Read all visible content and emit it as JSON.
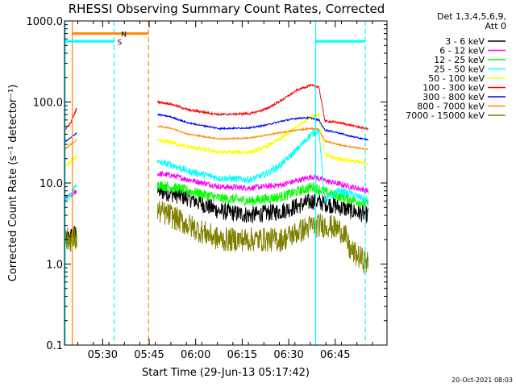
{
  "chart_data": {
    "type": "line",
    "title": "RHESSI Observing Summary Count Rates, Corrected",
    "xlabel": "Start Time (29-Jun-13 05:17:42)",
    "ylabel": "Corrected Count Rate (s⁻¹ detector⁻¹)",
    "yscale": "log",
    "ylim": [
      0.1,
      1000.0
    ],
    "xlim_minutes": [
      0,
      104
    ],
    "x_ticks": [
      {
        "label": "05:30",
        "t": 12.3
      },
      {
        "label": "05:45",
        "t": 27.3
      },
      {
        "label": "06:00",
        "t": 42.3
      },
      {
        "label": "06:15",
        "t": 57.3
      },
      {
        "label": "06:30",
        "t": 72.3
      },
      {
        "label": "06:45",
        "t": 87.3
      }
    ],
    "y_ticks": [
      {
        "label": "0.1",
        "v": 0.1
      },
      {
        "label": "1.0",
        "v": 1.0
      },
      {
        "label": "10.0",
        "v": 10.0
      },
      {
        "label": "100.0",
        "v": 100.0
      },
      {
        "label": "1000.0",
        "v": 1000.0
      }
    ],
    "legend_header": [
      "Det 1,3,4,5,6,9,",
      "Att 0"
    ],
    "legend_position": "right",
    "grid": false,
    "gaps_minutes": [
      [
        4,
        30
      ]
    ],
    "series": [
      {
        "name": "3 - 6 keV",
        "color": "#000000",
        "t": [
          0,
          2,
          4,
          30,
          34,
          40,
          50,
          60,
          70,
          80,
          85,
          98
        ],
        "v": [
          2,
          2.2,
          2.5,
          8,
          7.5,
          6.5,
          4.5,
          4,
          4.5,
          6,
          5.5,
          4
        ],
        "noise": 0.25
      },
      {
        "name": "6 - 12 keV",
        "color": "#ff00ff",
        "t": [
          0,
          2,
          4,
          30,
          34,
          40,
          50,
          60,
          70,
          80,
          85,
          98
        ],
        "v": [
          6.5,
          7,
          8,
          13,
          12.5,
          11,
          9,
          8.7,
          9.5,
          12,
          10.5,
          8
        ],
        "noise": 0.08
      },
      {
        "name": "12 - 25 keV",
        "color": "#00ff00",
        "t": [
          0,
          2,
          4,
          30,
          34,
          40,
          50,
          60,
          70,
          80,
          85,
          98
        ],
        "v": [
          1.7,
          1.8,
          2,
          9.5,
          9,
          8,
          6.5,
          6,
          6.8,
          9,
          7.5,
          5.5
        ],
        "noise": 0.15
      },
      {
        "name": "25 - 50 keV",
        "color": "#00ffff",
        "t": [
          0,
          2,
          4,
          30,
          34,
          40,
          50,
          60,
          65,
          70,
          75,
          79,
          82,
          84,
          88,
          92,
          98
        ],
        "v": [
          6,
          7,
          10,
          18,
          17,
          14,
          11.5,
          11,
          13,
          17,
          26,
          38,
          45,
          6,
          8,
          7.5,
          6
        ],
        "noise": 0.1
      },
      {
        "name": "50 - 100 keV",
        "color": "#ffff00",
        "t": [
          0,
          2,
          4,
          30,
          34,
          40,
          50,
          60,
          65,
          70,
          75,
          79,
          82,
          84,
          88,
          92,
          98
        ],
        "v": [
          16,
          18,
          22,
          33,
          32,
          28,
          24,
          24,
          28,
          36,
          50,
          65,
          72,
          22,
          20,
          19,
          17
        ],
        "noise": 0.06
      },
      {
        "name": "100 - 300 keV",
        "color": "#ff0000",
        "t": [
          0,
          2,
          4,
          30,
          34,
          40,
          50,
          60,
          65,
          70,
          75,
          79,
          82,
          84,
          88,
          92,
          98
        ],
        "v": [
          45,
          55,
          85,
          100,
          95,
          80,
          70,
          72,
          82,
          105,
          140,
          160,
          155,
          58,
          56,
          52,
          46
        ],
        "noise": 0.03
      },
      {
        "name": "300 - 800 keV",
        "color": "#0000ff",
        "t": [
          0,
          2,
          4,
          30,
          34,
          40,
          50,
          60,
          65,
          70,
          75,
          79,
          82,
          84,
          88,
          92,
          98
        ],
        "v": [
          32,
          36,
          42,
          70,
          66,
          55,
          47,
          48,
          52,
          58,
          63,
          64,
          60,
          45,
          42,
          38,
          34
        ],
        "noise": 0.02
      },
      {
        "name": "800 - 7000 keV",
        "color": "#ff8800",
        "t": [
          0,
          2,
          4,
          30,
          34,
          40,
          50,
          60,
          65,
          70,
          75,
          79,
          82,
          84,
          88,
          92,
          98
        ],
        "v": [
          26,
          30,
          34,
          50,
          48,
          40,
          35,
          36,
          39,
          42,
          45,
          47,
          46,
          33,
          30,
          28,
          26
        ],
        "noise": 0.02
      },
      {
        "name": "7000 - 15000 keV",
        "color": "#808000",
        "t": [
          0,
          2,
          4,
          30,
          34,
          40,
          50,
          60,
          70,
          80,
          85,
          90,
          92,
          98
        ],
        "v": [
          2,
          2,
          2,
          4.5,
          4,
          3,
          2,
          2,
          2,
          3,
          3,
          2.5,
          1.5,
          1
        ],
        "noise": 0.35
      }
    ],
    "flag_bars": [
      {
        "label": "S",
        "color": "#00ffff",
        "t0": 0.2,
        "t1": 16,
        "v": 560
      },
      {
        "label": "N",
        "color": "#ff8800",
        "t0": 2.5,
        "t1": 27.1,
        "v": 700
      },
      {
        "label": "",
        "color": "#00ffff",
        "t0": 81,
        "t1": 97,
        "v": 560
      }
    ],
    "vertical_markers": [
      {
        "color": "#00ffff",
        "t": 0.2,
        "style": "solid"
      },
      {
        "color": "#ff8800",
        "t": 2.5,
        "style": "solid"
      },
      {
        "color": "#00ffff",
        "t": 16,
        "style": "dashed"
      },
      {
        "color": "#ff8800",
        "t": 27.1,
        "style": "dashed"
      },
      {
        "color": "#00ffff",
        "t": 81,
        "style": "solid"
      },
      {
        "color": "#00ffff",
        "t": 97,
        "style": "dashed"
      }
    ],
    "timestamp": "20-Oct-2021 08:03"
  }
}
